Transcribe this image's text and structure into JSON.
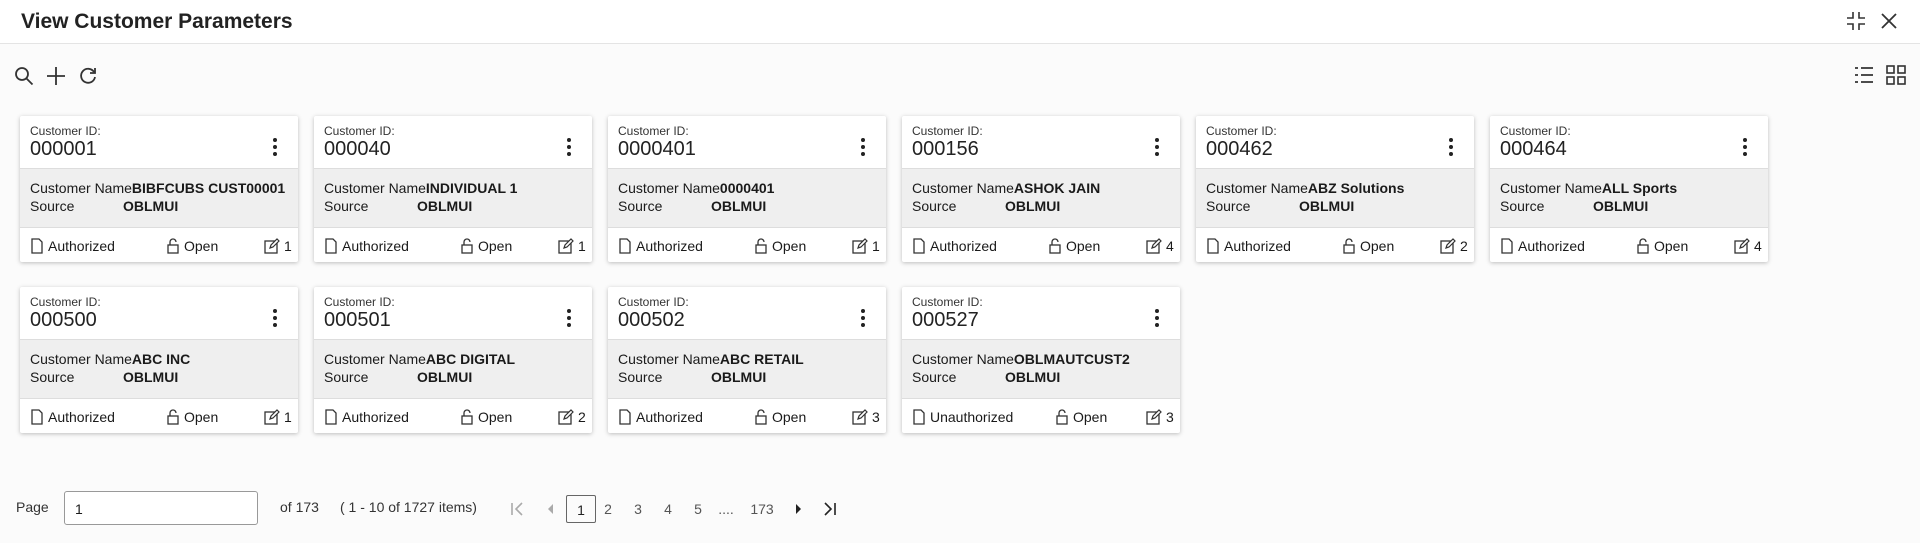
{
  "header": {
    "title": "View Customer Parameters"
  },
  "labels": {
    "customer_id": "Customer ID:",
    "customer_name": "Customer Name",
    "source": "Source"
  },
  "cards": [
    {
      "id": "000001",
      "name": "BIBFCUBS CUST00001",
      "source": "OBLMUI",
      "auth_status": "Authorized",
      "lock_status": "Open",
      "modifications": "1"
    },
    {
      "id": "000040",
      "name": "INDIVIDUAL 1",
      "source": "OBLMUI",
      "auth_status": "Authorized",
      "lock_status": "Open",
      "modifications": "1"
    },
    {
      "id": "0000401",
      "name": "0000401",
      "source": "OBLMUI",
      "auth_status": "Authorized",
      "lock_status": "Open",
      "modifications": "1"
    },
    {
      "id": "000156",
      "name": "ASHOK JAIN",
      "source": "OBLMUI",
      "auth_status": "Authorized",
      "lock_status": "Open",
      "modifications": "4"
    },
    {
      "id": "000462",
      "name": "ABZ Solutions",
      "source": "OBLMUI",
      "auth_status": "Authorized",
      "lock_status": "Open",
      "modifications": "2"
    },
    {
      "id": "000464",
      "name": "ALL Sports",
      "source": "OBLMUI",
      "auth_status": "Authorized",
      "lock_status": "Open",
      "modifications": "4"
    },
    {
      "id": "000500",
      "name": "ABC INC",
      "source": "OBLMUI",
      "auth_status": "Authorized",
      "lock_status": "Open",
      "modifications": "1"
    },
    {
      "id": "000501",
      "name": "ABC DIGITAL",
      "source": "OBLMUI",
      "auth_status": "Authorized",
      "lock_status": "Open",
      "modifications": "2"
    },
    {
      "id": "000502",
      "name": "ABC RETAIL",
      "source": "OBLMUI",
      "auth_status": "Authorized",
      "lock_status": "Open",
      "modifications": "3"
    },
    {
      "id": "000527",
      "name": "OBLMAUTCUST2",
      "source": "OBLMUI",
      "auth_status": "Unauthorized",
      "lock_status": "Open",
      "modifications": "3"
    }
  ],
  "pagination": {
    "page_label": "Page",
    "page_input": "1",
    "of_pages": "of 173",
    "items": "( 1 - 10 of 1727 items)",
    "pages": [
      "1",
      "2",
      "3",
      "4",
      "5",
      "....",
      "173"
    ]
  }
}
